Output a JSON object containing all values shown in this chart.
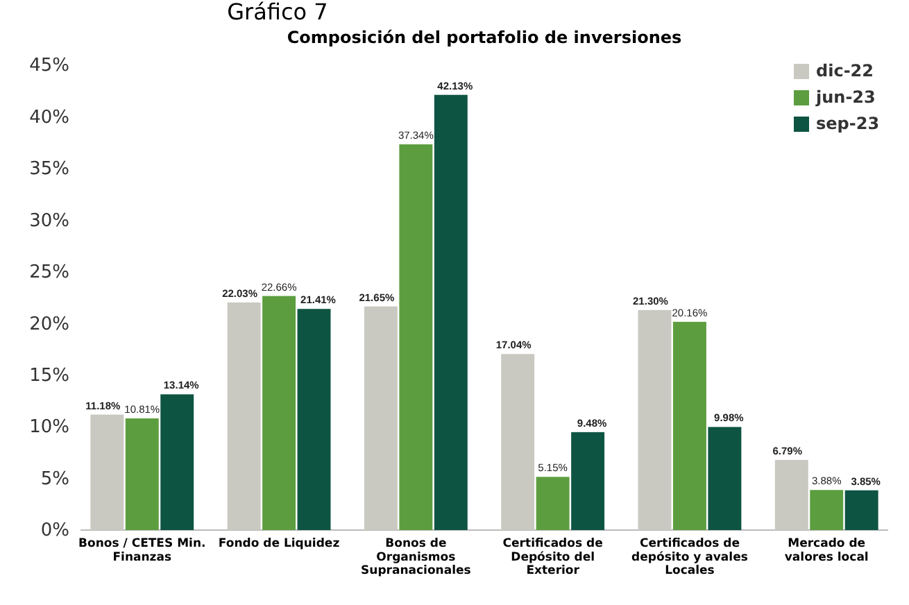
{
  "chart_data": {
    "type": "bar",
    "title": "Composición del portafolio de inversiones",
    "annotations": [
      "Gráfico 7"
    ],
    "categories": [
      "Bonos / CETES Min. Finanzas",
      "Fondo de Liquidez",
      "Bonos de Organismos Supranacionales",
      "Certificados de Depósito del Exterior",
      "Certificados de depósito y avales Locales",
      "Mercado de valores local"
    ],
    "series": [
      {
        "name": "dic-22",
        "color": "#c9c9c1",
        "values": [
          11.18,
          22.03,
          21.65,
          17.04,
          21.3,
          6.79
        ],
        "value_labels": [
          "11.18%",
          "22.03%",
          "21.65%",
          "17.04%",
          "21.30%",
          "6.79%"
        ]
      },
      {
        "name": "jun-23",
        "color": "#5c9e3f",
        "values": [
          10.81,
          22.66,
          37.34,
          5.15,
          20.16,
          3.88
        ],
        "value_labels": [
          "10.81%",
          "22.66%",
          "37.34%",
          "5.15%",
          "20.16%",
          "3.88%"
        ]
      },
      {
        "name": "sep-23",
        "color": "#0e5443",
        "values": [
          13.14,
          21.41,
          42.13,
          9.48,
          9.98,
          3.85
        ],
        "value_labels": [
          "13.14%",
          "21.41%",
          "42.13%",
          "9.48%",
          "9.98%",
          "3.85%"
        ]
      }
    ],
    "ylim": [
      0,
      45
    ],
    "yticks": [
      {
        "value": 0,
        "label": "0%"
      },
      {
        "value": 5,
        "label": "5%"
      },
      {
        "value": 10,
        "label": "10%"
      },
      {
        "value": 15,
        "label": "15%"
      },
      {
        "value": 20,
        "label": "20%"
      },
      {
        "value": 25,
        "label": "25%"
      },
      {
        "value": 30,
        "label": "30%"
      },
      {
        "value": 35,
        "label": "35%"
      },
      {
        "value": 40,
        "label": "40%"
      },
      {
        "value": 45,
        "label": "45%"
      }
    ],
    "grid": false,
    "legend": "top right"
  }
}
